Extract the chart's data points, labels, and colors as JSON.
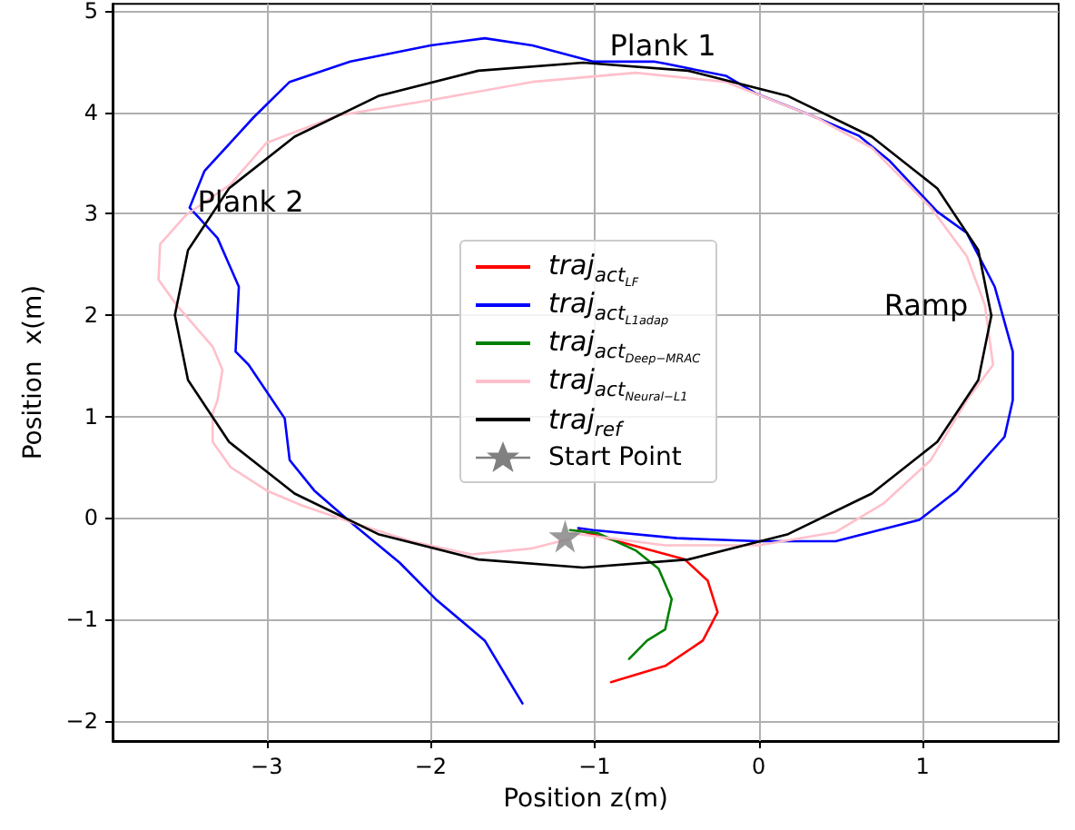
{
  "chart_data": {
    "type": "line",
    "xlabel": "Position z(m)",
    "ylabel": "Position  x(m)",
    "xlim": [
      -3.94,
      1.83
    ],
    "ylim": [
      -2.2,
      5.07
    ],
    "xticks": [
      -3,
      -2,
      -1,
      0,
      1
    ],
    "yticks": [
      -2,
      -1,
      0,
      1,
      2,
      3,
      4,
      5
    ],
    "grid": true,
    "legend": "center",
    "annotations": [
      "Plank 1",
      "Plank 2",
      "Ramp"
    ],
    "series": [
      {
        "name": "traj$_{act}$$_{LF}$",
        "color": "#ff0000",
        "x": [
          -1.1,
          -0.86,
          -0.45,
          -0.31,
          -0.25,
          -0.34,
          -0.57,
          -0.86,
          -0.9
        ],
        "values": [
          -0.12,
          -0.23,
          -0.41,
          -0.62,
          -0.93,
          -1.21,
          -1.46,
          -1.6,
          -1.62
        ]
      },
      {
        "name": "traj$_{act}$$_{L1adap}$",
        "color": "#0000ff",
        "x": [
          -1.1,
          -1.01,
          -0.5,
          0,
          0.47,
          0.98,
          1.21,
          1.5,
          1.55,
          1.55,
          1.44,
          1.27,
          1.09,
          0.8,
          0.61,
          0.32,
          -0.01,
          -0.2,
          -0.57,
          -0.64,
          -1.01,
          -1.38,
          -1.67,
          -2.0,
          -2.49,
          -2.86,
          -3.08,
          -3.38,
          -3.47,
          -3.3,
          -3.17,
          -3.19,
          -3.11,
          -2.89,
          -2.86,
          -2.71,
          -2.49,
          -2.19,
          -1.97,
          -1.67,
          -1.44
        ],
        "values": [
          -0.1,
          -0.12,
          -0.2,
          -0.23,
          -0.23,
          -0.02,
          0.27,
          0.8,
          1.16,
          1.64,
          2.28,
          2.81,
          3.02,
          3.52,
          3.77,
          3.97,
          4.18,
          4.36,
          4.48,
          4.5,
          4.5,
          4.66,
          4.73,
          4.66,
          4.5,
          4.3,
          3.95,
          3.42,
          3.06,
          2.76,
          2.28,
          1.64,
          1.51,
          0.98,
          0.57,
          0.27,
          -0.04,
          -0.44,
          -0.8,
          -1.21,
          -1.83
        ]
      },
      {
        "name": "traj$_{act}$$_{Deep−MRAC}$",
        "color": "#008000",
        "x": [
          -1.15,
          -0.98,
          -0.75,
          -0.61,
          -0.53,
          -0.57,
          -0.68,
          -0.79
        ],
        "values": [
          -0.12,
          -0.15,
          -0.32,
          -0.5,
          -0.8,
          -1.1,
          -1.21,
          -1.39
        ]
      },
      {
        "name": "traj$_{act}$$_{Neural−L1}$",
        "color": "#ffc0cb",
        "x": [
          -1.15,
          -0.57,
          0,
          0.47,
          0.76,
          1.05,
          1.27,
          1.43,
          1.38,
          1.27,
          1.05,
          0.69,
          0.35,
          -0.2,
          -0.75,
          -1.38,
          -2.0,
          -2.56,
          -3.0,
          -3.22,
          -3.49,
          -3.65,
          -3.66,
          -3.55,
          -3.33,
          -3.27,
          -3.3,
          -3.33,
          -3.33,
          -3.22,
          -3.0,
          -2.78,
          -2.49,
          -2.12,
          -1.75,
          -1.38,
          -1.16
        ],
        "values": [
          -0.15,
          -0.27,
          -0.27,
          -0.14,
          0.14,
          0.57,
          1.16,
          1.51,
          2.1,
          2.58,
          3.06,
          3.65,
          3.95,
          4.3,
          4.39,
          4.3,
          4.12,
          3.97,
          3.7,
          3.29,
          2.99,
          2.7,
          2.35,
          2.1,
          1.69,
          1.46,
          1.16,
          1.03,
          0.75,
          0.5,
          0.27,
          0.12,
          -0.04,
          -0.23,
          -0.36,
          -0.3,
          -0.21
        ]
      },
      {
        "name": "traj$_{ref}$",
        "color": "#000000",
        "x": [
          1.42,
          1.34,
          1.09,
          0.69,
          0.18,
          -0.43,
          -1.07,
          -1.71,
          -2.32,
          -2.83,
          -3.23,
          -3.48,
          -3.56,
          -3.48,
          -3.23,
          -2.83,
          -2.32,
          -1.71,
          -1.07,
          -0.43,
          0.18,
          0.69,
          1.09,
          1.34,
          1.42
        ],
        "values": [
          1.99,
          2.64,
          3.25,
          3.76,
          4.16,
          4.41,
          4.49,
          4.41,
          4.16,
          3.76,
          3.25,
          2.64,
          2.0,
          1.36,
          0.75,
          0.24,
          -0.16,
          -0.41,
          -0.49,
          -0.41,
          -0.16,
          0.24,
          0.75,
          1.36,
          2.0
        ]
      },
      {
        "name": "Start Point",
        "type": "scatter",
        "marker": "star",
        "color": "#808080",
        "x": [
          -1.18
        ],
        "values": [
          -0.18
        ]
      }
    ]
  }
}
